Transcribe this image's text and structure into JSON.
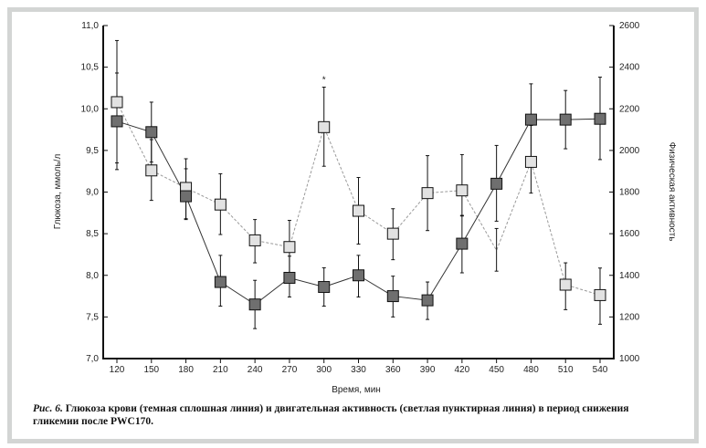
{
  "chart_data": {
    "type": "line",
    "xlabel": "Время, мин",
    "ylabel": "Глюкоза, ммоль/л",
    "y2label": "Физическая активность",
    "x": [
      120,
      150,
      180,
      210,
      240,
      270,
      300,
      330,
      360,
      390,
      420,
      450,
      480,
      510,
      540
    ],
    "ylim": [
      7.0,
      11.0
    ],
    "y2lim": [
      1000,
      2600
    ],
    "yticks": [
      "7,0",
      "7,5",
      "8,0",
      "8,5",
      "9,0",
      "9,5",
      "10,0",
      "10,5",
      "11,0"
    ],
    "y2ticks": [
      "1000",
      "1200",
      "1400",
      "1600",
      "1800",
      "2000",
      "2200",
      "2400",
      "2600"
    ],
    "series": [
      {
        "name": "Глюкоза крови",
        "axis": "left",
        "style": "dark-solid",
        "values": [
          9.85,
          9.72,
          8.95,
          7.92,
          7.65,
          7.97,
          7.86,
          8.0,
          7.75,
          7.7,
          8.38,
          9.1,
          9.87,
          9.87,
          9.88
        ],
        "err_low": [
          9.27,
          9.36,
          8.67,
          7.63,
          7.36,
          7.74,
          7.63,
          7.74,
          7.5,
          7.47,
          8.03,
          8.65,
          9.41,
          9.52,
          9.39
        ],
        "err_high": [
          10.43,
          10.08,
          9.28,
          8.24,
          7.94,
          8.23,
          8.09,
          8.24,
          7.99,
          7.92,
          8.72,
          9.56,
          10.3,
          10.22,
          10.38
        ],
        "markers": [
          true,
          true,
          true,
          true,
          true,
          true,
          true,
          true,
          true,
          true,
          true,
          true,
          true,
          true,
          true
        ]
      },
      {
        "name": "Двигательная активность",
        "axis": "right",
        "style": "light-dashed",
        "values": [
          2232,
          1904,
          1820,
          1740,
          1568,
          1536,
          2112,
          1710,
          1600,
          1795,
          1808,
          1520,
          1945,
          1355,
          1305
        ],
        "err_low": [
          1940,
          1760,
          1672,
          1596,
          1460,
          1408,
          1924,
          1550,
          1475,
          1615,
          1685,
          1420,
          1795,
          1235,
          1165
        ],
        "err_high": [
          2528,
          2052,
          1960,
          1888,
          1668,
          1664,
          2304,
          1870,
          1720,
          1975,
          1980,
          1625,
          2120,
          1460,
          1435
        ],
        "markers": [
          true,
          true,
          true,
          true,
          true,
          true,
          true,
          true,
          true,
          true,
          true,
          false,
          true,
          true,
          true
        ]
      }
    ],
    "annotations": [
      {
        "x": 300,
        "text": "*"
      }
    ],
    "colors": {
      "dark": "#6f6f6f",
      "light": "#e2e2e2",
      "light_line": "#999999"
    },
    "caption_prefix": "Рис. 6.",
    "caption": " Глюкоза крови (темная сплошная линия) и двигательная активность (светлая пунктирная линия) в период снижения гликемии после PWC170."
  }
}
